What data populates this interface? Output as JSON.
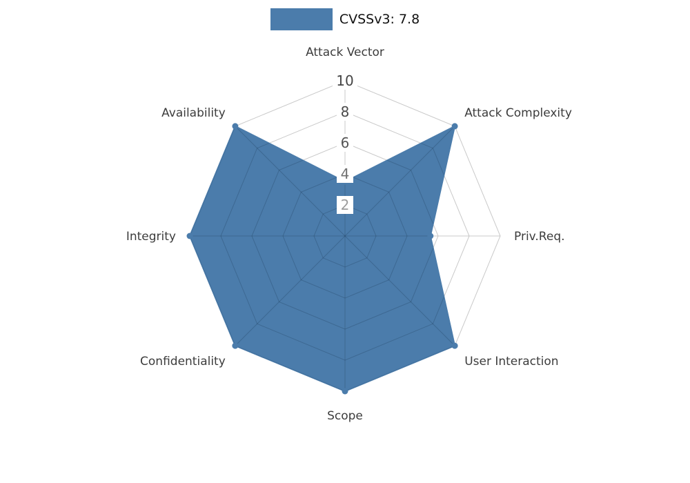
{
  "legend": {
    "label": "CVSSv3: 7.8"
  },
  "chart_data": {
    "type": "radar",
    "title": "CVSSv3: 7.8",
    "categories": [
      "Attack Vector",
      "Attack Complexity",
      "Priv.Req.",
      "User Interaction",
      "Scope",
      "Confidentiality",
      "Integrity",
      "Availability"
    ],
    "series": [
      {
        "name": "CVSSv3: 7.8",
        "values": [
          3.5,
          10,
          5.5,
          10,
          10,
          10,
          10,
          10
        ]
      }
    ],
    "ticks": [
      2,
      4,
      6,
      8,
      10
    ],
    "tick_colors": [
      "#9c9c9c",
      "#707070",
      "#555555",
      "#4a4a4a",
      "#444444"
    ],
    "rlim": [
      0,
      10
    ],
    "fill_color": "#4b7cab",
    "grid_color": "#c9c9c9",
    "axis_label_color": "#3c3c3c",
    "legend_position": "top"
  }
}
